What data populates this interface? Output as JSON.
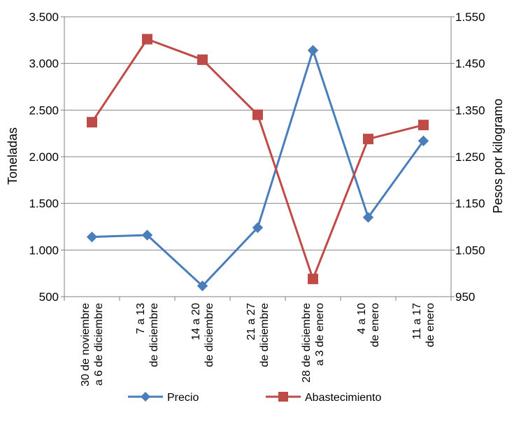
{
  "chart_data": {
    "type": "line",
    "xlabel": "",
    "categories": [
      [
        "30 de noviembre",
        "a 6 de diciembre"
      ],
      [
        "7 a 13",
        "de diciembre"
      ],
      [
        "14 a 20",
        "de diciembre"
      ],
      [
        "21 a 27",
        "de diciembre"
      ],
      [
        "28 de diciembre",
        "a 3 de enero"
      ],
      [
        "4 a 10",
        "de enero"
      ],
      [
        "11 a 17",
        "de enero"
      ]
    ],
    "ylabel_left": "Toneladas",
    "ylabel_right": "Pesos por kilogramo",
    "ylim_left": [
      500,
      3500
    ],
    "yticks_left": [
      "3.500",
      "3.000",
      "2.500",
      "2.000",
      "1.500",
      "1.000",
      "500"
    ],
    "ylim_right": [
      950,
      1550
    ],
    "yticks_right": [
      "1.550",
      "1.450",
      "1.350",
      "1.250",
      "1.150",
      "1.050",
      "950"
    ],
    "grid": true,
    "legend_position": "bottom",
    "series": [
      {
        "name": "Precio",
        "axis": "right",
        "color": "#4a7ebb",
        "marker": "diamond",
        "values": [
          1078,
          1082,
          973,
          1098,
          1478,
          1120,
          1284
        ]
      },
      {
        "name": "Abastecimiento",
        "axis": "left",
        "color": "#be4b48",
        "marker": "square",
        "values": [
          2370,
          3260,
          3040,
          2450,
          690,
          2190,
          2340
        ]
      }
    ]
  }
}
